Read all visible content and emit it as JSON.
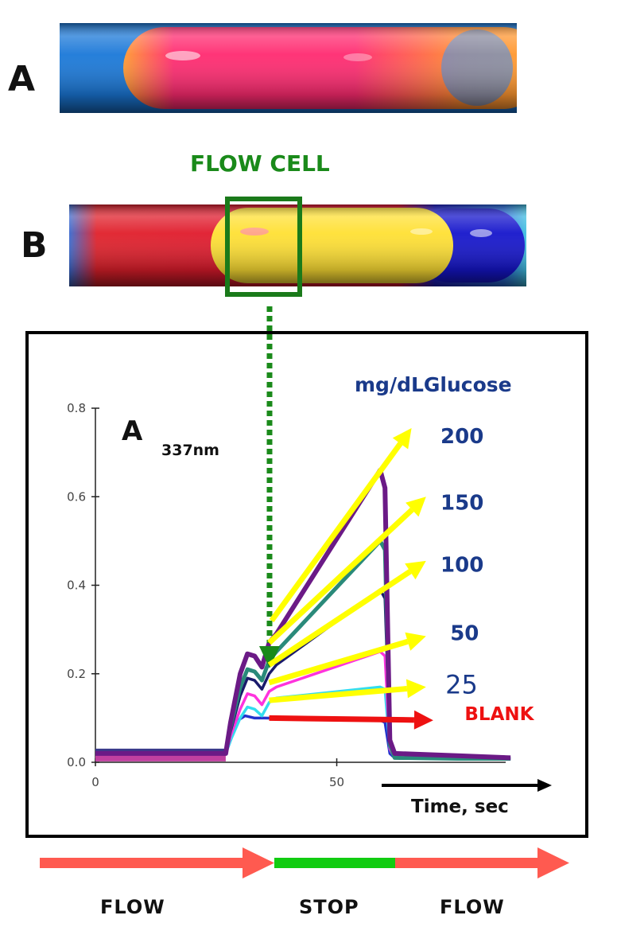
{
  "tubes": {
    "a_label": "A",
    "b_label": "B",
    "flow_cell_label": "FLOW CELL"
  },
  "chart_data": {
    "type": "line",
    "ylabel_main": "A",
    "ylabel_sub": "337nm",
    "xlabel": "Time, sec",
    "legend_title": "mg/dLGlucose",
    "xlim": [
      0,
      85
    ],
    "ylim": [
      0,
      0.8
    ],
    "xticks": [
      "0",
      "50"
    ],
    "yticks": [
      "0.0",
      "0.2",
      "0.4",
      "0.6",
      "0.8"
    ],
    "series": [
      {
        "name": "200",
        "color": "#6b1a86",
        "points": [
          [
            0,
            0.02
          ],
          [
            27,
            0.02
          ],
          [
            28,
            0.09
          ],
          [
            30,
            0.2
          ],
          [
            31.5,
            0.245
          ],
          [
            33,
            0.24
          ],
          [
            34.5,
            0.215
          ],
          [
            36,
            0.27
          ],
          [
            37.5,
            0.29
          ],
          [
            59,
            0.66
          ],
          [
            60,
            0.62
          ],
          [
            61,
            0.05
          ],
          [
            62,
            0.02
          ],
          [
            75,
            0.015
          ],
          [
            86,
            0.01
          ]
        ]
      },
      {
        "name": "150",
        "color": "#2a8a7a",
        "points": [
          [
            0,
            0.02
          ],
          [
            27,
            0.02
          ],
          [
            28,
            0.08
          ],
          [
            30,
            0.17
          ],
          [
            31.5,
            0.21
          ],
          [
            33,
            0.205
          ],
          [
            34.5,
            0.185
          ],
          [
            36,
            0.23
          ],
          [
            37.5,
            0.25
          ],
          [
            59,
            0.5
          ],
          [
            60,
            0.48
          ],
          [
            61,
            0.04
          ],
          [
            62,
            0.01
          ],
          [
            75,
            0.008
          ],
          [
            86,
            0.008
          ]
        ]
      },
      {
        "name": "100",
        "color": "#1a1a6b",
        "points": [
          [
            0,
            0.02
          ],
          [
            27,
            0.02
          ],
          [
            28,
            0.07
          ],
          [
            30,
            0.15
          ],
          [
            31.5,
            0.19
          ],
          [
            33,
            0.185
          ],
          [
            34.5,
            0.165
          ],
          [
            36,
            0.2
          ],
          [
            37.5,
            0.22
          ],
          [
            59,
            0.39
          ],
          [
            60,
            0.37
          ],
          [
            61,
            0.04
          ],
          [
            62,
            0.01
          ],
          [
            75,
            0.008
          ],
          [
            86,
            0.008
          ]
        ]
      },
      {
        "name": "50",
        "color": "#ff33dd",
        "points": [
          [
            0,
            0.02
          ],
          [
            27,
            0.02
          ],
          [
            28,
            0.06
          ],
          [
            30,
            0.12
          ],
          [
            31.5,
            0.155
          ],
          [
            33,
            0.15
          ],
          [
            34.5,
            0.13
          ],
          [
            36,
            0.16
          ],
          [
            37.5,
            0.17
          ],
          [
            59,
            0.25
          ],
          [
            60,
            0.24
          ],
          [
            61,
            0.03
          ],
          [
            62,
            0.01
          ],
          [
            75,
            0.008
          ],
          [
            86,
            0.008
          ]
        ]
      },
      {
        "name": "25",
        "color": "#33ddee",
        "points": [
          [
            0,
            0.02
          ],
          [
            27,
            0.02
          ],
          [
            28,
            0.05
          ],
          [
            30,
            0.1
          ],
          [
            31.5,
            0.125
          ],
          [
            33,
            0.12
          ],
          [
            34.5,
            0.105
          ],
          [
            36,
            0.135
          ],
          [
            37.5,
            0.145
          ],
          [
            59,
            0.17
          ],
          [
            60,
            0.165
          ],
          [
            61,
            0.03
          ],
          [
            62,
            0.01
          ],
          [
            75,
            0.008
          ],
          [
            86,
            0.008
          ]
        ]
      },
      {
        "name": "BLANK",
        "color": "#2233cc",
        "points": [
          [
            0,
            0.02
          ],
          [
            27,
            0.02
          ],
          [
            28,
            0.05
          ],
          [
            29.5,
            0.095
          ],
          [
            31,
            0.105
          ],
          [
            33,
            0.1
          ],
          [
            35,
            0.1
          ],
          [
            59,
            0.095
          ],
          [
            60,
            0.09
          ],
          [
            61,
            0.02
          ],
          [
            62,
            0.01
          ],
          [
            75,
            0.008
          ],
          [
            86,
            0.008
          ]
        ]
      }
    ],
    "callouts": [
      {
        "label": "200",
        "color": "#1a3a8a",
        "font": "bold",
        "arrow": "#ffff00",
        "from": [
          36.5,
          0.32
        ],
        "to": [
          65.5,
          0.755
        ],
        "label_at": [
          71.5,
          0.735
        ]
      },
      {
        "label": "150",
        "color": "#1a3a8a",
        "font": "bold",
        "arrow": "#ffff00",
        "from": [
          36,
          0.27
        ],
        "to": [
          68.5,
          0.6
        ],
        "label_at": [
          71.5,
          0.585
        ]
      },
      {
        "label": "100",
        "color": "#1a3a8a",
        "font": "bold",
        "arrow": "#ffff00",
        "from": [
          36,
          0.22
        ],
        "to": [
          68.5,
          0.455
        ],
        "label_at": [
          71.5,
          0.445
        ]
      },
      {
        "label": "50",
        "color": "#1a3a8a",
        "font": "bold",
        "arrow": "#ffff00",
        "from": [
          36,
          0.18
        ],
        "to": [
          68.5,
          0.285
        ],
        "label_at": [
          73.5,
          0.29
        ]
      },
      {
        "label": "25",
        "color": "#1a3a8a",
        "font": "normal",
        "arrow": "#ffff00",
        "from": [
          36,
          0.14
        ],
        "to": [
          68.5,
          0.17
        ],
        "label_at": [
          72.5,
          0.17
        ]
      },
      {
        "label": "BLANK",
        "color": "#ee1111",
        "font": "bold",
        "arrow": "#ee1111",
        "from": [
          36,
          0.1
        ],
        "to": [
          70,
          0.095
        ],
        "label_at": [
          76.5,
          0.11
        ]
      }
    ],
    "baseline_band_colors": [
      "#3a3a8a",
      "#c040a0"
    ]
  },
  "phases": {
    "flow1": "FLOW",
    "stop": "STOP",
    "flow2": "FLOW",
    "flow_color": "#ff5a50",
    "stop_color": "#11cc11"
  }
}
